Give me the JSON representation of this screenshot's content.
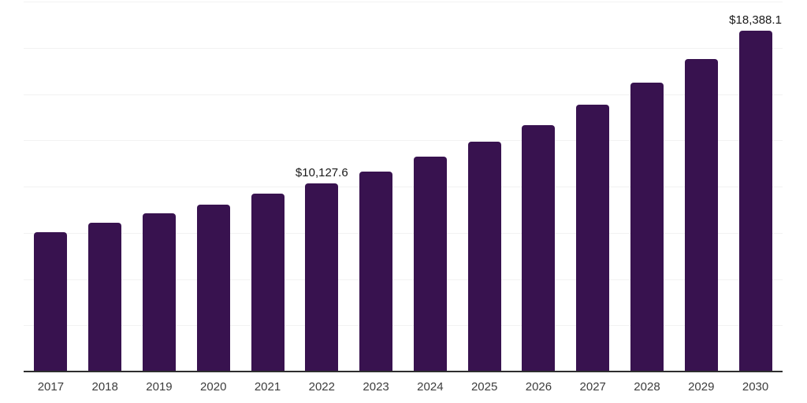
{
  "chart": {
    "colors": {
      "background": "#ffffff",
      "bar": "#38124f",
      "gridline": "#f2f2f2",
      "axis_line": "#2e2e2e",
      "data_label_text": "#1a1a1a",
      "tick_label_text": "#3d3d3d"
    }
  },
  "chart_data": {
    "type": "bar",
    "title": "",
    "xlabel": "",
    "ylabel": "",
    "categories": [
      "2017",
      "2018",
      "2019",
      "2020",
      "2021",
      "2022",
      "2023",
      "2024",
      "2025",
      "2026",
      "2027",
      "2028",
      "2029",
      "2030"
    ],
    "values": [
      7490,
      8010,
      8500,
      8980,
      9580,
      10127.6,
      10780,
      11560,
      12370,
      13290,
      14370,
      15570,
      16850,
      18388.1
    ],
    "data_labels": [
      {
        "index": 5,
        "category": "2022",
        "text": "$10,127.6"
      },
      {
        "index": 13,
        "category": "2030",
        "text": "$18,388.1"
      }
    ],
    "ylim": [
      0,
      20000
    ],
    "gridline_step": 2500,
    "grid": "horizontal",
    "y_tick_labels_shown": false,
    "legend": "none"
  }
}
